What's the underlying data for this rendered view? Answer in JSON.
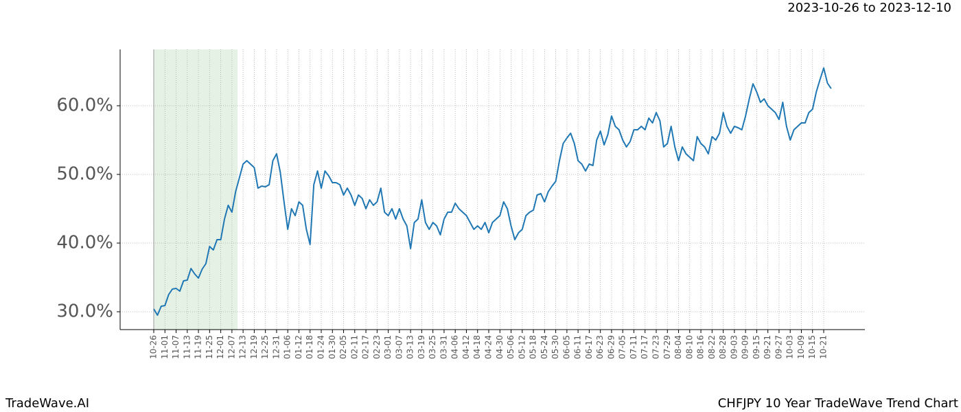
{
  "chart_data": {
    "type": "line",
    "title": "2023-10-26 to 2023-12-10",
    "footer_left": "TradeWave.AI",
    "footer_right": "CHFJPY 10 Year TradeWave Trend Chart",
    "categories": [
      "10-26",
      null,
      null,
      "11-01",
      null,
      null,
      "11-07",
      null,
      null,
      "11-13",
      null,
      null,
      "11-19",
      null,
      null,
      "11-25",
      null,
      null,
      "12-01",
      null,
      null,
      "12-07",
      null,
      null,
      "12-13",
      null,
      null,
      "12-19",
      null,
      null,
      "12-25",
      null,
      null,
      "12-31",
      null,
      null,
      "01-06",
      null,
      null,
      "01-12",
      null,
      null,
      "01-18",
      null,
      null,
      "01-24",
      null,
      null,
      "01-30",
      null,
      null,
      "02-05",
      null,
      null,
      "02-11",
      null,
      null,
      "02-17",
      null,
      null,
      "02-23",
      null,
      null,
      "03-01",
      null,
      null,
      "03-07",
      null,
      null,
      "03-13",
      null,
      null,
      "03-19",
      null,
      null,
      "03-25",
      null,
      null,
      "03-31",
      null,
      null,
      "04-06",
      null,
      null,
      "04-12",
      null,
      null,
      "04-18",
      null,
      null,
      "04-24",
      null,
      null,
      "04-30",
      null,
      null,
      "05-06",
      null,
      null,
      "05-12",
      null,
      null,
      "05-18",
      null,
      null,
      "05-24",
      null,
      null,
      "05-30",
      null,
      null,
      "06-05",
      null,
      null,
      "06-11",
      null,
      null,
      "06-17",
      null,
      null,
      "06-23",
      null,
      null,
      "06-29",
      null,
      null,
      "07-05",
      null,
      null,
      "07-11",
      null,
      null,
      "07-17",
      null,
      null,
      "07-23",
      null,
      null,
      "07-29",
      null,
      null,
      "08-04",
      null,
      null,
      "08-10",
      null,
      null,
      "08-16",
      null,
      null,
      "08-22",
      null,
      null,
      "08-28",
      null,
      null,
      "09-03",
      null,
      null,
      "09-09",
      null,
      null,
      "09-15",
      null,
      null,
      "09-21",
      null,
      null,
      "09-27",
      null,
      null,
      "10-03",
      null,
      null,
      "10-09",
      null,
      null,
      "10-15",
      null,
      null,
      "10-21",
      null,
      null
    ],
    "series": [
      {
        "color": "#1f77b4",
        "values": [
          30.4,
          29.5,
          30.8,
          30.9,
          32.5,
          33.3,
          33.4,
          33.0,
          34.5,
          34.6,
          36.3,
          35.5,
          34.9,
          36.2,
          37.0,
          39.5,
          39.0,
          40.5,
          40.5,
          43.5,
          45.5,
          44.5,
          47.5,
          49.5,
          51.5,
          52.0,
          51.5,
          51.0,
          48.0,
          48.3,
          48.2,
          48.5,
          52.0,
          53.0,
          50.3,
          46.0,
          42.0,
          45.0,
          44.0,
          46.0,
          45.5,
          42.0,
          39.8,
          48.5,
          50.5,
          48.0,
          50.5,
          49.8,
          48.8,
          48.8,
          48.5,
          47.0,
          48.0,
          47.0,
          45.5,
          47.0,
          46.5,
          45.0,
          46.3,
          45.5,
          46.0,
          48.0,
          44.5,
          44.0,
          45.0,
          43.5,
          45.0,
          43.5,
          42.5,
          39.2,
          43.0,
          43.5,
          46.3,
          43.0,
          42.0,
          43.0,
          42.5,
          41.2,
          43.5,
          44.5,
          44.5,
          45.8,
          45.0,
          44.5,
          44.0,
          43.0,
          42.0,
          42.5,
          42.0,
          43.0,
          41.5,
          43.0,
          43.5,
          44.0,
          46.0,
          45.0,
          42.5,
          40.5,
          41.5,
          42.0,
          44.0,
          44.5,
          44.8,
          47.0,
          47.2,
          46.0,
          47.5,
          48.3,
          49.0,
          52.0,
          54.5,
          55.3,
          56.0,
          54.5,
          52.0,
          51.5,
          50.5,
          51.5,
          51.3,
          55.0,
          56.3,
          54.3,
          55.8,
          58.5,
          57.0,
          56.5,
          55.0,
          54.0,
          54.8,
          56.5,
          56.5,
          57.0,
          56.5,
          58.2,
          57.5,
          59.0,
          57.8,
          54.0,
          54.5,
          57.0,
          54.0,
          52.0,
          54.0,
          53.0,
          52.5,
          52.0,
          55.5,
          54.5,
          54.0,
          53.0,
          55.5,
          55.0,
          56.0,
          59.0,
          57.0,
          56.0,
          57.0,
          56.8,
          56.5,
          58.5,
          61.0,
          63.2,
          62.0,
          60.5,
          61.0,
          60.0,
          59.5,
          59.0,
          58.0,
          60.5,
          57.0,
          55.0,
          56.5,
          57.0,
          57.5,
          57.5,
          59.0,
          59.5,
          62.0,
          63.8,
          65.5,
          63.3,
          62.5
        ]
      }
    ],
    "ylim": [
      27.4,
      68.2
    ],
    "yticks": [
      {
        "value": 30,
        "label": "30.0%"
      },
      {
        "value": 40,
        "label": "40.0%"
      },
      {
        "value": 50,
        "label": "50.0%"
      },
      {
        "value": 60,
        "label": "60.0%"
      }
    ],
    "grid": true,
    "highlight": {
      "from": 0,
      "to": 22.5,
      "color": "#e5f1e5"
    }
  }
}
